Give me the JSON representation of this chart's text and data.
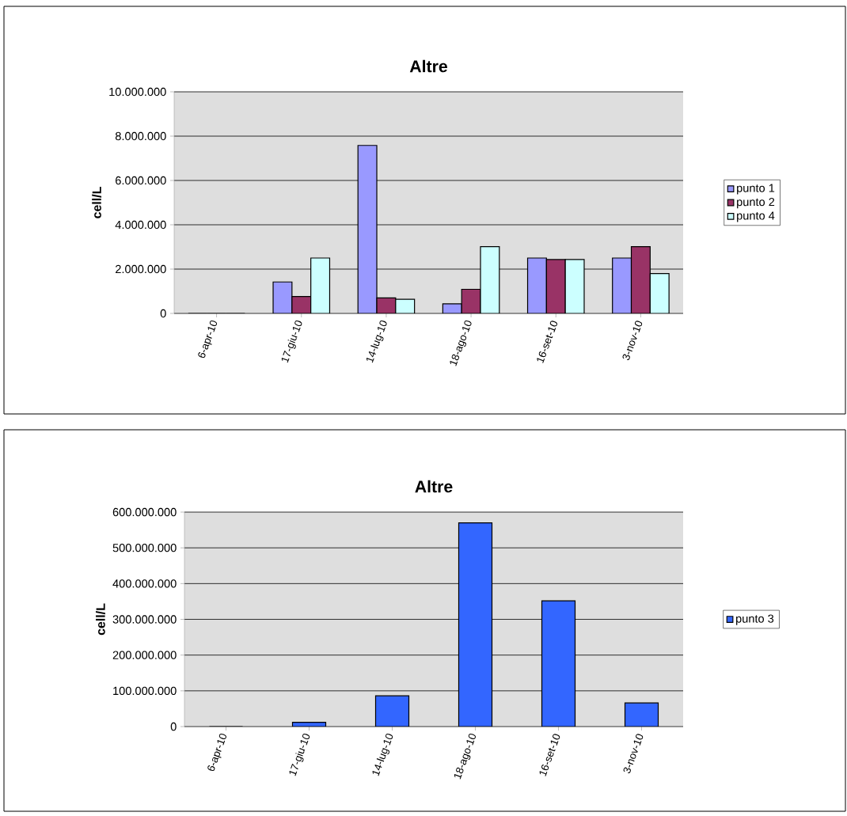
{
  "chart_data": [
    {
      "type": "bar",
      "title": "Altre",
      "ylabel": "cell/L",
      "categories": [
        "6-apr-10",
        "17-giu-10",
        "14-lug-10",
        "18-ago-10",
        "16-set-10",
        "3-nov-10"
      ],
      "series": [
        {
          "name": "punto 1",
          "color": "#9999ff",
          "values": [
            0,
            1420000,
            7580000,
            430000,
            2500000,
            2500000
          ]
        },
        {
          "name": "punto 2",
          "color": "#993366",
          "values": [
            0,
            760000,
            700000,
            1090000,
            2430000,
            3010000
          ]
        },
        {
          "name": "punto 4",
          "color": "#ccffff",
          "values": [
            0,
            2500000,
            640000,
            3010000,
            2430000,
            1800000
          ]
        }
      ],
      "ylim": [
        0,
        10000000
      ],
      "yticks": [
        0,
        {
          "value": 2000000,
          "label": "2.000.000"
        },
        {
          "value": 4000000,
          "label": "4.000.000"
        },
        {
          "value": 6000000,
          "label": "6.000.000"
        },
        {
          "value": 8000000,
          "label": "8.000.000"
        },
        {
          "value": 10000000,
          "label": "10.000.000"
        }
      ],
      "grid": "y",
      "legend": "right"
    },
    {
      "type": "bar",
      "title": "Altre",
      "ylabel": "cell/L",
      "categories": [
        "6-apr-10",
        "17-giu-10",
        "14-lug-10",
        "18-ago-10",
        "16-set-10",
        "3-nov-10"
      ],
      "series": [
        {
          "name": "punto 3",
          "color": "#3366ff",
          "values": [
            0,
            12000000,
            86000000,
            570000000,
            352000000,
            66000000
          ]
        }
      ],
      "ylim": [
        0,
        600000000
      ],
      "yticks": [
        0,
        {
          "value": 100000000,
          "label": "100.000.000"
        },
        {
          "value": 200000000,
          "label": "200.000.000"
        },
        {
          "value": 300000000,
          "label": "300.000.000"
        },
        {
          "value": 400000000,
          "label": "400.000.000"
        },
        {
          "value": 500000000,
          "label": "500.000.000"
        },
        {
          "value": 600000000,
          "label": "600.000.000"
        }
      ],
      "grid": "y",
      "legend": "right"
    }
  ]
}
